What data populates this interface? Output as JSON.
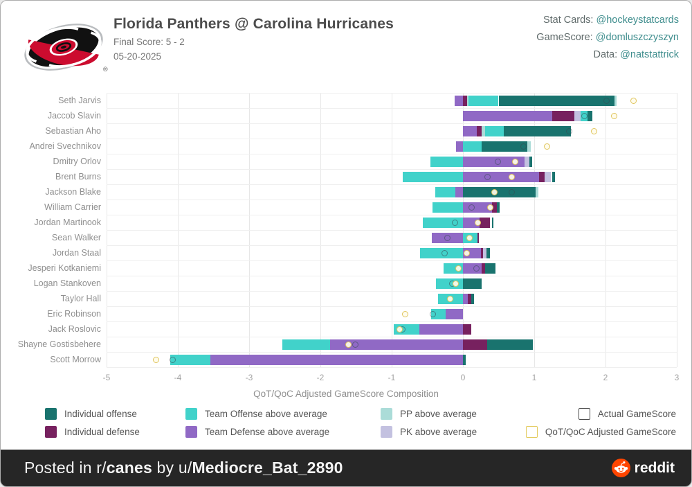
{
  "header": {
    "title": "Florida Panthers @ Carolina Hurricanes",
    "final_score": "Final Score: 5 - 2",
    "date": "05-20-2025",
    "registered_mark": "®"
  },
  "credits": [
    {
      "label": "Stat Cards: ",
      "handle": "@hockeystatcards"
    },
    {
      "label": "GameScore: ",
      "handle": "@domluszczyszyn"
    },
    {
      "label": "Data: ",
      "handle": "@natstattrick"
    }
  ],
  "colors": {
    "io": "#19736e",
    "to": "#41d2ca",
    "pp": "#abdcd8",
    "id": "#77215f",
    "td": "#9069c5",
    "pk": "#c3c1e0",
    "actual_border": "#4a4a4a",
    "adjusted_border": "#e3cb5e",
    "logo_red": "#cc0c2f",
    "logo_black": "#111111",
    "reddit_orange": "#ff4500"
  },
  "chart_data": {
    "type": "bar",
    "orientation": "horizontal",
    "title": "",
    "xlabel": "QoT/QoC Adjusted GameScore Composition",
    "xlim": [
      -5,
      3
    ],
    "xticks": [
      -5,
      -4,
      -3,
      -2,
      -1,
      0,
      1,
      2,
      3
    ],
    "grid": true,
    "legend": [
      {
        "key": "io",
        "label": "Individual offense"
      },
      {
        "key": "id",
        "label": "Individual defense"
      },
      {
        "key": "to",
        "label": "Team Offense above average"
      },
      {
        "key": "td",
        "label": "Team Defense above average"
      },
      {
        "key": "pp",
        "label": "PP above average"
      },
      {
        "key": "pk",
        "label": "PK above average"
      },
      {
        "key": "actual",
        "label": "Actual GameScore"
      },
      {
        "key": "adjusted",
        "label": "QoT/QoC Adjusted GameScore"
      }
    ],
    "players": [
      {
        "name": "Seth Jarvis",
        "segments": [
          {
            "key": "td",
            "from": -0.12,
            "to": 0
          },
          {
            "key": "id",
            "from": 0,
            "to": 0.06
          },
          {
            "key": "pp",
            "from": 0.06,
            "to": 0.08
          },
          {
            "key": "to",
            "from": 0.08,
            "to": 0.5
          },
          {
            "key": "io",
            "from": 0.5,
            "to": 2.13
          },
          {
            "key": "pp",
            "from": 2.13,
            "to": 2.16
          }
        ],
        "actual_gamescore": 2.01,
        "adjusted_gamescore": 2.39
      },
      {
        "name": "Jaccob Slavin",
        "segments": [
          {
            "key": "td",
            "from": 0,
            "to": 1.25
          },
          {
            "key": "id",
            "from": 1.25,
            "to": 1.56
          },
          {
            "key": "pk",
            "from": 1.56,
            "to": 1.65
          },
          {
            "key": "to",
            "from": 1.65,
            "to": 1.75
          },
          {
            "key": "io",
            "from": 1.75,
            "to": 1.82
          }
        ],
        "actual_gamescore": 1.7,
        "adjusted_gamescore": 2.12
      },
      {
        "name": "Sebastian Aho",
        "segments": [
          {
            "key": "td",
            "from": 0,
            "to": 0.19
          },
          {
            "key": "id",
            "from": 0.19,
            "to": 0.26
          },
          {
            "key": "pp",
            "from": 0.26,
            "to": 0.31
          },
          {
            "key": "to",
            "from": 0.31,
            "to": 0.57
          },
          {
            "key": "io",
            "from": 0.57,
            "to": 1.51
          }
        ],
        "actual_gamescore": 1.49,
        "adjusted_gamescore": 1.84
      },
      {
        "name": "Andrei Svechnikov",
        "segments": [
          {
            "key": "td",
            "from": -0.1,
            "to": 0
          },
          {
            "key": "to",
            "from": 0,
            "to": 0.26
          },
          {
            "key": "io",
            "from": 0.26,
            "to": 0.9
          },
          {
            "key": "pp",
            "from": 0.9,
            "to": 0.95
          }
        ],
        "actual_gamescore": 0.85,
        "adjusted_gamescore": 1.18
      },
      {
        "name": "Dmitry Orlov",
        "segments": [
          {
            "key": "to",
            "from": -0.46,
            "to": 0
          },
          {
            "key": "td",
            "from": 0,
            "to": 0.86
          },
          {
            "key": "pk",
            "from": 0.86,
            "to": 0.93
          },
          {
            "key": "io",
            "from": 0.93,
            "to": 0.97
          }
        ],
        "actual_gamescore": 0.49,
        "adjusted_gamescore": 0.73
      },
      {
        "name": "Brent Burns",
        "segments": [
          {
            "key": "to",
            "from": -0.84,
            "to": 0
          },
          {
            "key": "td",
            "from": 0,
            "to": 1.07
          },
          {
            "key": "id",
            "from": 1.07,
            "to": 1.15
          },
          {
            "key": "pk",
            "from": 1.15,
            "to": 1.23
          },
          {
            "key": "io",
            "from": 1.25,
            "to": 1.29
          }
        ],
        "actual_gamescore": 0.34,
        "adjusted_gamescore": 0.68
      },
      {
        "name": "Jackson Blake",
        "segments": [
          {
            "key": "to",
            "from": -0.39,
            "to": -0.11
          },
          {
            "key": "td",
            "from": -0.11,
            "to": 0
          },
          {
            "key": "io",
            "from": 0,
            "to": 1.02
          },
          {
            "key": "pp",
            "from": 1.02,
            "to": 1.06
          }
        ],
        "actual_gamescore": 0.68,
        "adjusted_gamescore": 0.44
      },
      {
        "name": "William Carrier",
        "segments": [
          {
            "key": "to",
            "from": -0.43,
            "to": 0
          },
          {
            "key": "td",
            "from": 0,
            "to": 0.41
          },
          {
            "key": "id",
            "from": 0.41,
            "to": 0.48
          },
          {
            "key": "io",
            "from": 0.48,
            "to": 0.51
          }
        ],
        "actual_gamescore": 0.12,
        "adjusted_gamescore": 0.38
      },
      {
        "name": "Jordan Martinook",
        "segments": [
          {
            "key": "to",
            "from": -0.56,
            "to": 0
          },
          {
            "key": "td",
            "from": 0,
            "to": 0.23
          },
          {
            "key": "id",
            "from": 0.23,
            "to": 0.38
          },
          {
            "key": "io",
            "from": 0.41,
            "to": 0.43
          }
        ],
        "actual_gamescore": -0.11,
        "adjusted_gamescore": 0.21
      },
      {
        "name": "Sean Walker",
        "segments": [
          {
            "key": "td",
            "from": -0.44,
            "to": 0
          },
          {
            "key": "to",
            "from": 0,
            "to": 0.2
          },
          {
            "key": "id",
            "from": 0.2,
            "to": 0.22
          }
        ],
        "actual_gamescore": -0.22,
        "adjusted_gamescore": 0.09
      },
      {
        "name": "Jordan Staal",
        "segments": [
          {
            "key": "to",
            "from": -0.6,
            "to": 0
          },
          {
            "key": "td",
            "from": 0,
            "to": 0.25
          },
          {
            "key": "id",
            "from": 0.25,
            "to": 0.28
          },
          {
            "key": "pk",
            "from": 0.28,
            "to": 0.33
          },
          {
            "key": "io",
            "from": 0.33,
            "to": 0.38
          }
        ],
        "actual_gamescore": -0.26,
        "adjusted_gamescore": 0.05
      },
      {
        "name": "Jesperi Kotkaniemi",
        "segments": [
          {
            "key": "to",
            "from": -0.27,
            "to": 0
          },
          {
            "key": "td",
            "from": 0,
            "to": 0.26
          },
          {
            "key": "id",
            "from": 0.26,
            "to": 0.31
          },
          {
            "key": "io",
            "from": 0.31,
            "to": 0.46
          }
        ],
        "actual_gamescore": 0.19,
        "adjusted_gamescore": -0.06
      },
      {
        "name": "Logan Stankoven",
        "segments": [
          {
            "key": "to",
            "from": -0.38,
            "to": 0
          },
          {
            "key": "io",
            "from": 0,
            "to": 0.26
          }
        ],
        "actual_gamescore": -0.15,
        "adjusted_gamescore": -0.1
      },
      {
        "name": "Taylor Hall",
        "segments": [
          {
            "key": "to",
            "from": -0.35,
            "to": 0
          },
          {
            "key": "td",
            "from": 0,
            "to": 0.07
          },
          {
            "key": "id",
            "from": 0.07,
            "to": 0.12
          },
          {
            "key": "io",
            "from": 0.12,
            "to": 0.16
          }
        ],
        "actual_gamescore": null,
        "adjusted_gamescore": -0.18
      },
      {
        "name": "Eric Robinson",
        "segments": [
          {
            "key": "to",
            "from": -0.45,
            "to": -0.24
          },
          {
            "key": "td",
            "from": -0.24,
            "to": 0
          }
        ],
        "actual_gamescore": -0.42,
        "adjusted_gamescore": -0.81
      },
      {
        "name": "Jack Roslovic",
        "segments": [
          {
            "key": "to",
            "from": -0.97,
            "to": -0.61
          },
          {
            "key": "td",
            "from": -0.61,
            "to": 0
          },
          {
            "key": "id",
            "from": 0,
            "to": 0.12
          }
        ],
        "actual_gamescore": -0.85,
        "adjusted_gamescore": -0.89
      },
      {
        "name": "Shayne Gostisbehere",
        "segments": [
          {
            "key": "to",
            "from": -2.53,
            "to": -1.86
          },
          {
            "key": "td",
            "from": -1.86,
            "to": 0
          },
          {
            "key": "id",
            "from": 0,
            "to": 0.34
          },
          {
            "key": "io",
            "from": 0.34,
            "to": 0.98
          }
        ],
        "actual_gamescore": -1.51,
        "adjusted_gamescore": -1.61
      },
      {
        "name": "Scott Morrow",
        "segments": [
          {
            "key": "to",
            "from": -4.11,
            "to": -3.54
          },
          {
            "key": "td",
            "from": -3.54,
            "to": 0
          },
          {
            "key": "io",
            "from": 0,
            "to": 0.04
          }
        ],
        "actual_gamescore": -4.07,
        "adjusted_gamescore": -4.31
      }
    ]
  },
  "footer": {
    "prefix": "Posted in r/",
    "subreddit": "canes",
    "middle": " by u/",
    "username": "Mediocre_Bat_2890",
    "brand": "reddit"
  }
}
